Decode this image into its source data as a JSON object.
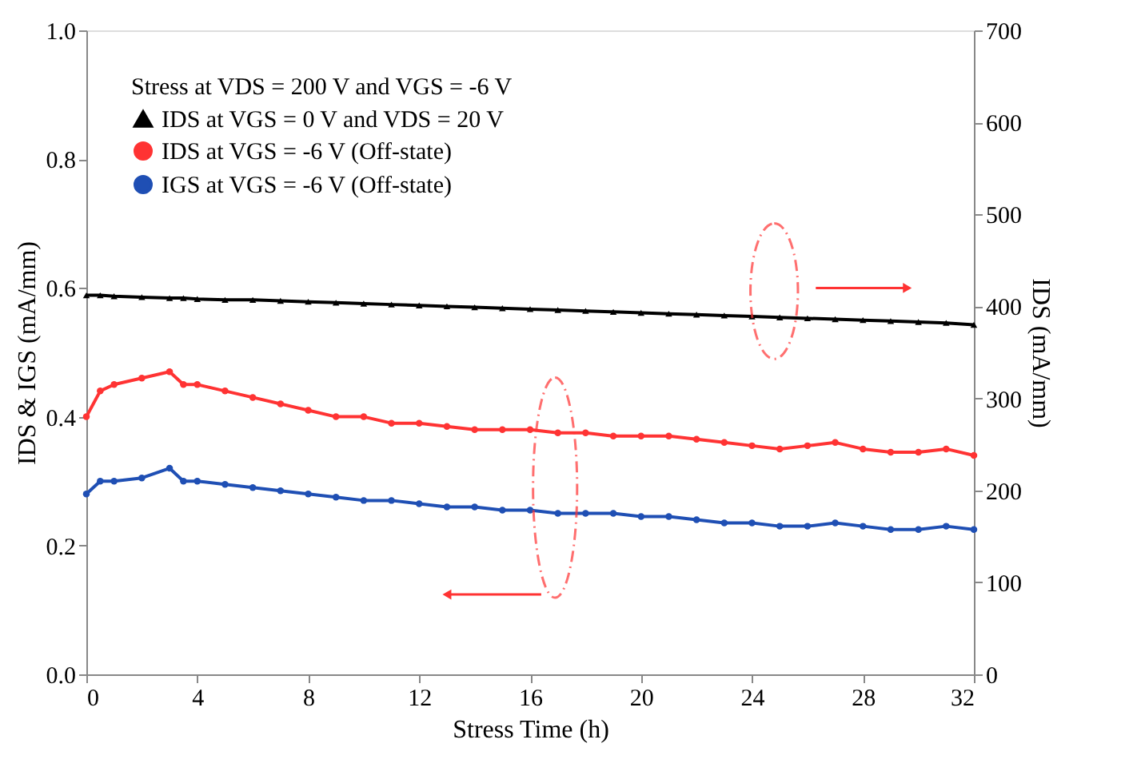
{
  "chart_data": {
    "type": "line",
    "xlabel": "Stress Time (h)",
    "ylabel": "IDS & IGS (mA/mm)",
    "y2label": "IDS (mA/mm)",
    "legend_title": "Stress at VDS = 200 V and VGS = -6 V",
    "legend": "top left",
    "grid": false,
    "line_style": "solid",
    "x": [
      0,
      0.5,
      1,
      2,
      3,
      3.5,
      4,
      5,
      6,
      7,
      8,
      9,
      10,
      11,
      12,
      13,
      14,
      15,
      16,
      17,
      18,
      19,
      20,
      21,
      22,
      23,
      24,
      25,
      26,
      27,
      28,
      29,
      30,
      31,
      32
    ],
    "xlim": [
      0,
      32
    ],
    "xticks": [
      0,
      4,
      8,
      12,
      16,
      20,
      24,
      28,
      32
    ],
    "ylim": [
      0,
      1.0
    ],
    "yticks": [
      {
        "value": 0,
        "label": "0.0"
      },
      0.2,
      0.4,
      0.6,
      0.8,
      {
        "value": 1,
        "label": "1.0"
      }
    ],
    "y2lim": [
      0,
      700
    ],
    "y2ticks": [
      0,
      100,
      200,
      300,
      400,
      500,
      600,
      700
    ],
    "series": [
      {
        "name": "IDS at VGS = 0 V and VDS = 20 V",
        "color": "#000000",
        "axis": "y2",
        "marker": "triangle",
        "values": [
          412,
          412,
          411,
          410,
          409,
          409,
          408,
          407,
          407,
          406,
          405,
          404,
          403,
          402,
          401,
          400,
          399,
          398,
          397,
          396,
          395,
          394,
          393,
          392,
          391,
          390,
          389,
          388,
          387,
          386,
          385,
          384,
          383,
          382,
          380
        ]
      },
      {
        "name": "IDS at VGS = -6 V (Off-state)",
        "color": "#ff3333",
        "marker": "circle",
        "values": [
          0.4,
          0.44,
          0.45,
          0.46,
          0.47,
          0.45,
          0.45,
          0.44,
          0.43,
          0.42,
          0.41,
          0.4,
          0.4,
          0.39,
          0.39,
          0.385,
          0.38,
          0.38,
          0.38,
          0.375,
          0.375,
          0.37,
          0.37,
          0.37,
          0.365,
          0.36,
          0.355,
          0.35,
          0.355,
          0.36,
          0.35,
          0.345,
          0.345,
          0.35,
          0.34
        ]
      },
      {
        "name": "IGS at VGS = -6 V (Off-state)",
        "color": "#1f4fb4",
        "marker": "circle",
        "values": [
          0.28,
          0.3,
          0.3,
          0.305,
          0.32,
          0.3,
          0.3,
          0.295,
          0.29,
          0.285,
          0.28,
          0.275,
          0.27,
          0.27,
          0.265,
          0.26,
          0.26,
          0.255,
          0.255,
          0.25,
          0.25,
          0.25,
          0.245,
          0.245,
          0.24,
          0.235,
          0.235,
          0.23,
          0.23,
          0.235,
          0.23,
          0.225,
          0.225,
          0.23,
          0.225
        ]
      }
    ]
  }
}
